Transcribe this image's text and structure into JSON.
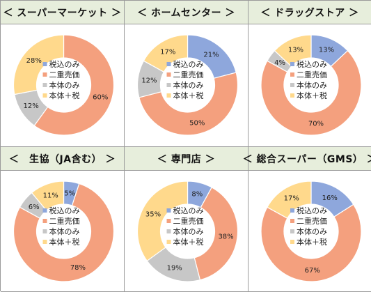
{
  "legend": [
    "税込のみ",
    "二重売価",
    "本体のみ",
    "本体＋税"
  ],
  "colors": [
    "#8ea7dc",
    "#f4a07e",
    "#c7c7c7",
    "#ffd98c"
  ],
  "chart_data": [
    {
      "type": "pie",
      "title": "＜ スーパーマーケット ＞",
      "categories": [
        "税込のみ",
        "二重売価",
        "本体のみ",
        "本体＋税"
      ],
      "values": [
        0,
        60,
        12,
        28
      ],
      "value_labels": [
        "",
        "60%",
        "12%",
        "28%"
      ]
    },
    {
      "type": "pie",
      "title": "＜ ホームセンター ＞",
      "categories": [
        "税込のみ",
        "二重売価",
        "本体のみ",
        "本体＋税"
      ],
      "values": [
        21,
        50,
        12,
        17
      ],
      "value_labels": [
        "21%",
        "50%",
        "12%",
        "17%"
      ]
    },
    {
      "type": "pie",
      "title": "＜ ドラッグストア ＞",
      "categories": [
        "税込のみ",
        "二重売価",
        "本体のみ",
        "本体＋税"
      ],
      "values": [
        13,
        70,
        4,
        13
      ],
      "value_labels": [
        "13%",
        "70%",
        "4%",
        "13%"
      ]
    },
    {
      "type": "pie",
      "title": "＜　生協（JA含む） ＞",
      "categories": [
        "税込のみ",
        "二重売価",
        "本体のみ",
        "本体＋税"
      ],
      "values": [
        5,
        78,
        6,
        11
      ],
      "value_labels": [
        "5%",
        "78%",
        "6%",
        "11%"
      ]
    },
    {
      "type": "pie",
      "title": "＜ 専門店 ＞",
      "categories": [
        "税込のみ",
        "二重売価",
        "本体のみ",
        "本体＋税"
      ],
      "values": [
        8,
        38,
        19,
        35
      ],
      "value_labels": [
        "8%",
        "38%",
        "19%",
        "35%"
      ]
    },
    {
      "type": "pie",
      "title": "＜ 総合スーパー（GMS） ＞",
      "categories": [
        "税込のみ",
        "二重売価",
        "本体のみ",
        "本体＋税"
      ],
      "values": [
        16,
        67,
        0,
        17
      ],
      "value_labels": [
        "16%",
        "67%",
        "",
        "17%"
      ]
    }
  ]
}
